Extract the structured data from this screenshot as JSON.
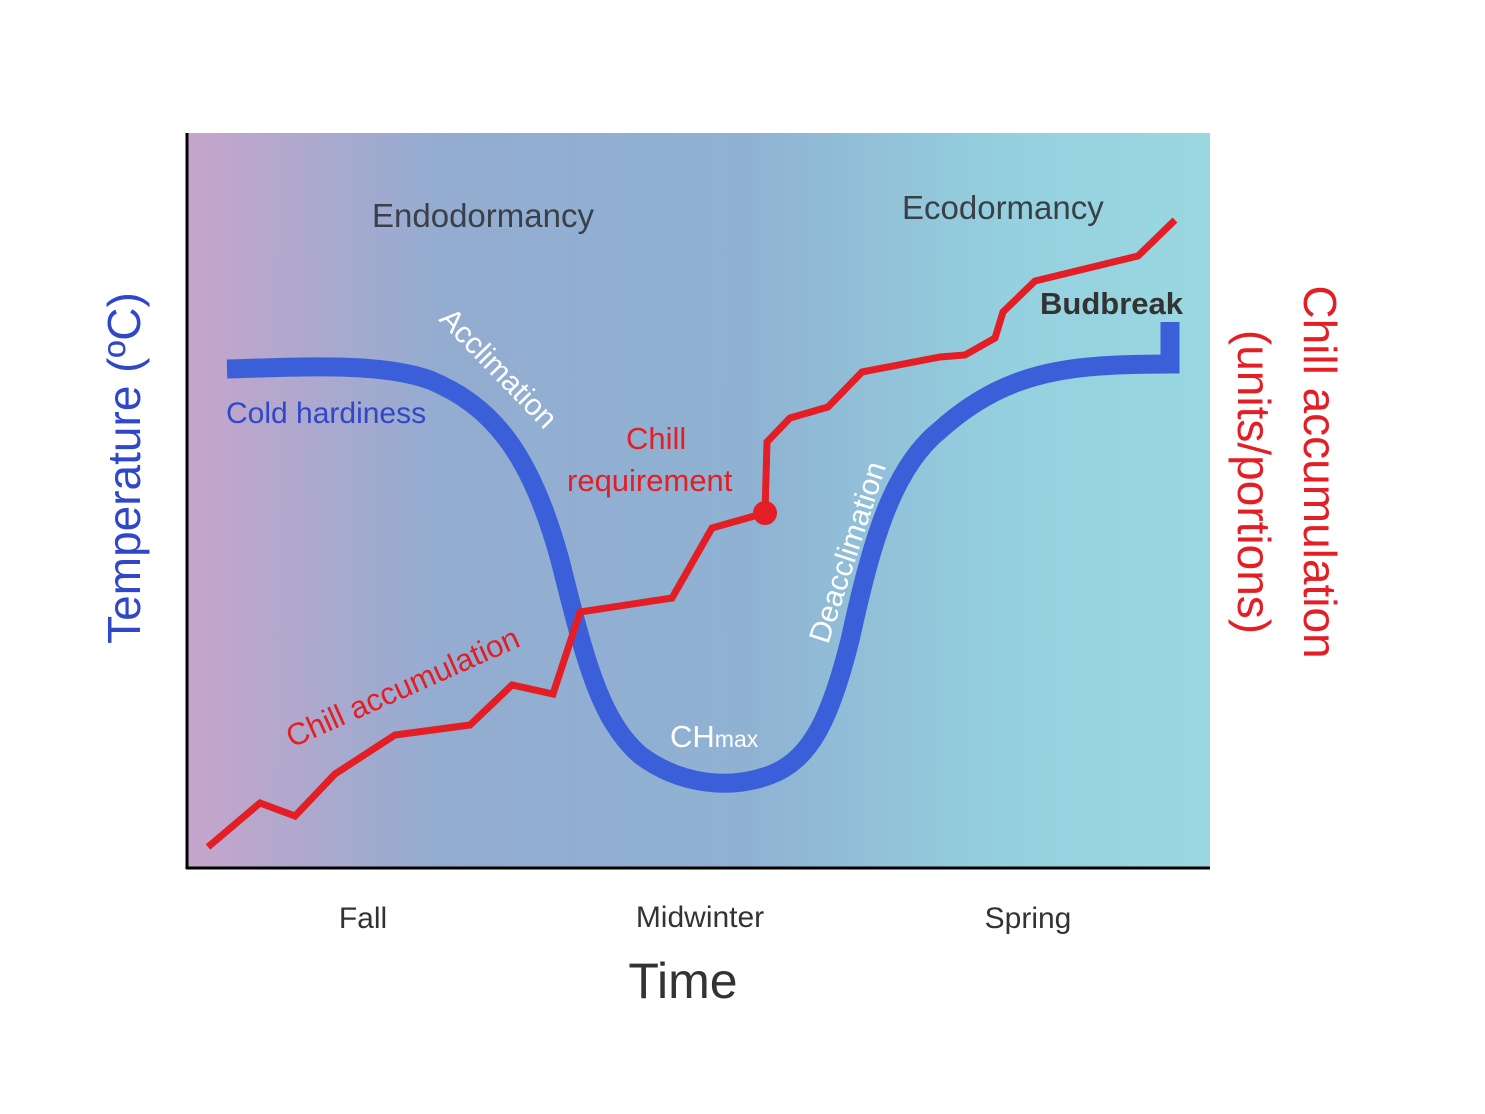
{
  "diagram": {
    "phases": {
      "left": "Endodormancy",
      "right": "Ecodormancy"
    },
    "x_axis": {
      "title": "Time",
      "ticks": [
        "Fall",
        "Midwinter",
        "Spring"
      ]
    },
    "y_axis_left": {
      "title": "Temperature (ºC)",
      "color": "#2f47c9"
    },
    "y_axis_right": {
      "title_line1": "Chill accumulation",
      "title_line2": "(units/portions)",
      "color": "#e31e24"
    },
    "labels": {
      "cold_hardiness": "Cold hardiness",
      "acclimation": "Acclimation",
      "deacclimation": "Deacclimation",
      "chill_requirement_line1": "Chill",
      "chill_requirement_line2": "requirement",
      "chill_accumulation": "Chill accumulation",
      "ch_main": "CH",
      "ch_sub": "max",
      "budbreak": "Budbreak"
    },
    "colors": {
      "cold_hardiness_curve": "#3a5fd9",
      "chill_curve": "#e31e24",
      "background_left": "#c5a5cc",
      "background_mid": "#8fb0d2",
      "background_right": "#97d6e0"
    }
  }
}
